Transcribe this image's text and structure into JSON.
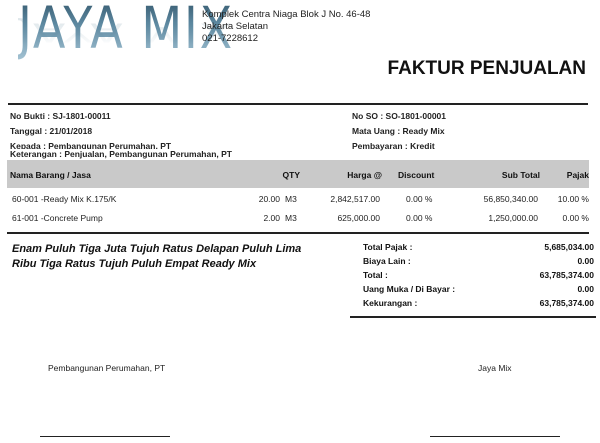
{
  "company": {
    "logo_text": "JAYA MIX",
    "address_lines": [
      "Komplek Centra Niaga Blok J No. 46-48",
      "Jakarta Selatan",
      "021-7228612"
    ]
  },
  "document_title": "FAKTUR PENJUALAN",
  "info_left": [
    "No Bukti : SJ-1801-00011",
    "Tanggal : 21/01/2018",
    "Kepada : Pembangunan Perumahan, PT",
    "Keterangan : Penjualan, Pembangunan Perumahan, PT"
  ],
  "info_right": [
    "No SO : SO-1801-00001",
    "Mata Uang : Ready Mix",
    "Pembayaran : Kredit"
  ],
  "table": {
    "headers": [
      "Nama Barang / Jasa",
      "QTY",
      "Harga @",
      "Discount",
      "Sub Total",
      "Pajak"
    ],
    "rows": [
      {
        "item": "60-001 -Ready Mix K.175/K",
        "qty": "20.00",
        "unit": "M3",
        "price": "2,842,517.00",
        "discount": "0.00 %",
        "subtotal": "56,850,340.00",
        "tax": "10.00 %"
      },
      {
        "item": "61-001 -Concrete Pump",
        "qty": "2.00",
        "unit": "M3",
        "price": "625,000.00",
        "discount": "0.00 %",
        "subtotal": "1,250,000.00",
        "tax": "0.00 %"
      }
    ]
  },
  "amount_in_words": [
    "Enam Puluh Tiga Juta Tujuh Ratus Delapan Puluh Lima",
    "Ribu Tiga Ratus Tujuh Puluh Empat   Ready Mix"
  ],
  "totals": [
    {
      "label": "Total Pajak :",
      "value": "5,685,034.00"
    },
    {
      "label": "Biaya Lain :",
      "value": "0.00"
    },
    {
      "label": "Total :",
      "value": "63,785,374.00"
    },
    {
      "label": "Uang Muka / Di Bayar :",
      "value": "0.00"
    },
    {
      "label": "Kekurangan :",
      "value": "63,785,374.00"
    }
  ],
  "signatures": {
    "customer": "Pembangunan Perumahan, PT",
    "company": "Jaya Mix"
  }
}
